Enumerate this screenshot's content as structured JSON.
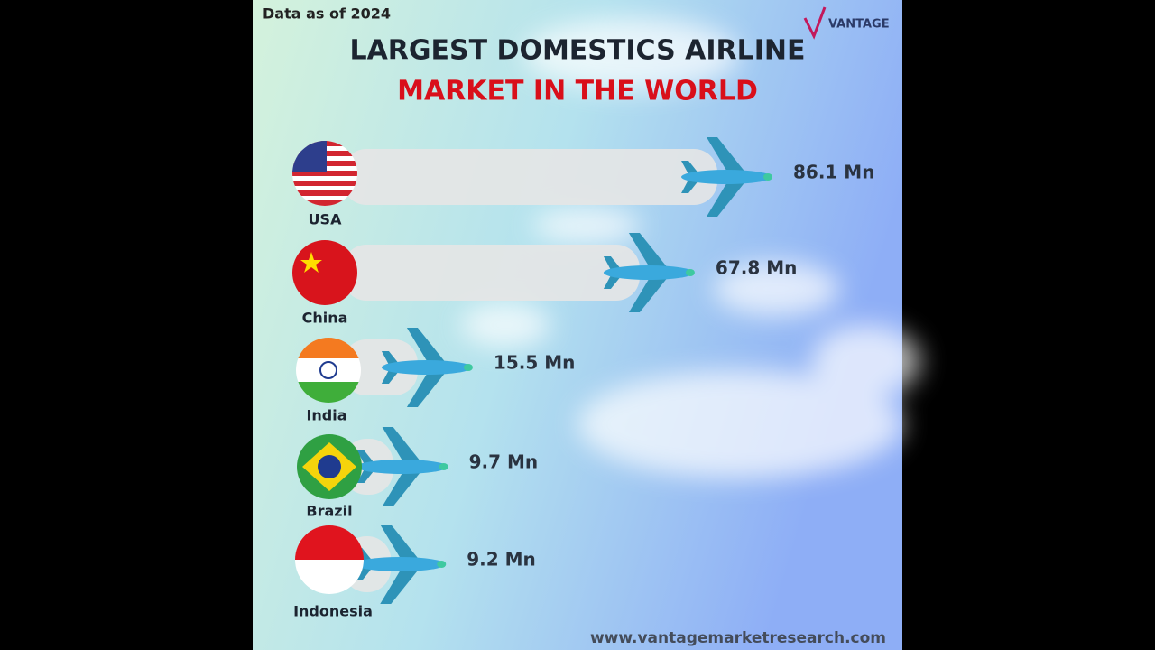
{
  "chart_data": {
    "type": "bar",
    "orientation": "horizontal",
    "note_top": "Data as of 2024",
    "title": "LARGEST DOMESTICS AIRLINE",
    "subtitle": "MARKET IN THE WORLD",
    "brand": "VANTAGE",
    "website": "www.vantagemarketresearch.com",
    "categories": [
      "USA",
      "China",
      "India",
      "Brazil",
      "Indonesia"
    ],
    "values": [
      86.1,
      67.8,
      15.5,
      9.7,
      9.2
    ],
    "value_labels": [
      "86.1 Mn",
      "67.8 Mn",
      "15.5 Mn",
      "9.7 Mn",
      "9.2 Mn"
    ],
    "color": "#e6e6e6"
  }
}
